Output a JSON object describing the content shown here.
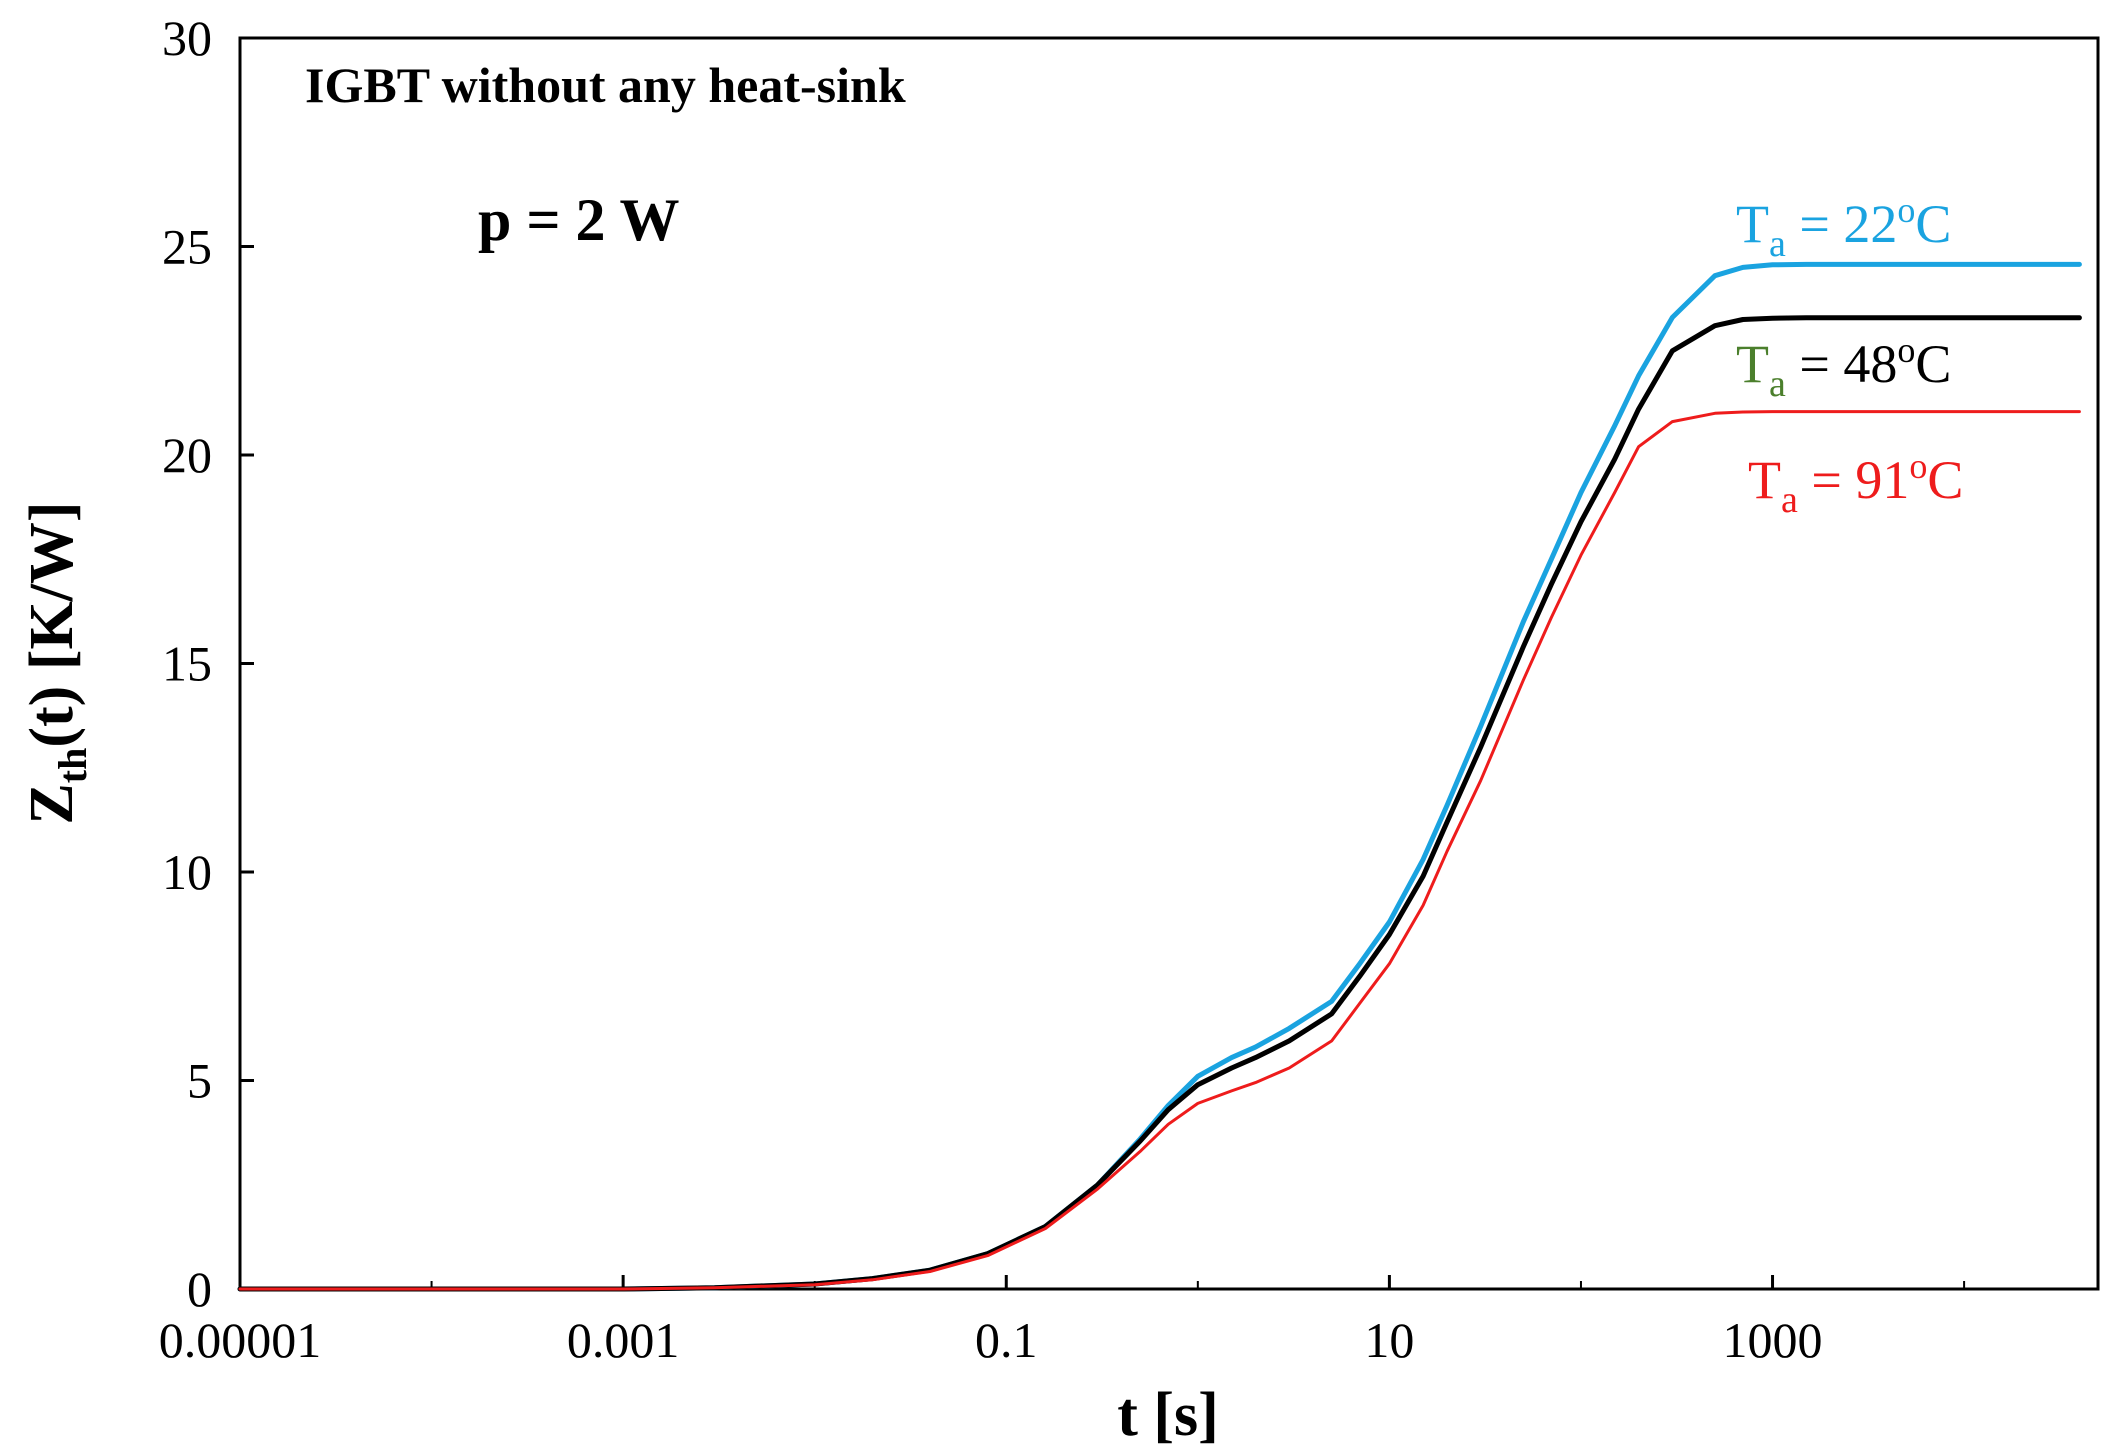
{
  "chart_data": {
    "type": "line",
    "title": "",
    "annotations": [
      {
        "name": "plot-subtitle",
        "text": "IGBT without any heat-sink"
      },
      {
        "name": "power-annotation",
        "text": "p = 2 W"
      }
    ],
    "xlabel": "t [s]",
    "ylabel": {
      "main": "Z",
      "sub": "th",
      "rest": "(t) [K/W]"
    },
    "x_scale": "log",
    "xlim": [
      1e-05,
      50000
    ],
    "ylim": [
      0,
      30
    ],
    "x_ticks": [
      1e-05,
      0.001,
      0.1,
      10,
      1000
    ],
    "x_tick_labels": [
      "0.00001",
      "0.001",
      "0.1",
      "10",
      "1000"
    ],
    "y_ticks": [
      0,
      5,
      10,
      15,
      20,
      25,
      30
    ],
    "y_tick_labels": [
      "0",
      "5",
      "10",
      "15",
      "20",
      "25",
      "30"
    ],
    "grid": false,
    "x": [
      1e-05,
      0.0001,
      0.001,
      0.003,
      0.01,
      0.02,
      0.04,
      0.08,
      0.16,
      0.3,
      0.5,
      0.7,
      1,
      1.5,
      2,
      3,
      5,
      7,
      10,
      15,
      20,
      30,
      50,
      70,
      100,
      150,
      200,
      300,
      500,
      700,
      1000,
      1500,
      3000,
      10000,
      40000
    ],
    "series": [
      {
        "name": "Ta = 22°C",
        "label_parts": {
          "main": "T",
          "sub": "a",
          "eq": " = 22",
          "sup": "o",
          "unit": "C"
        },
        "label_colors": {
          "main": "#1aa3e0",
          "rest": "#1aa3e0"
        },
        "color": "#1aa3e0",
        "width": 5,
        "values": [
          0,
          0,
          0,
          0.03,
          0.12,
          0.25,
          0.45,
          0.85,
          1.5,
          2.5,
          3.6,
          4.4,
          5.1,
          5.55,
          5.8,
          6.25,
          6.9,
          7.8,
          8.8,
          10.3,
          11.6,
          13.5,
          16.0,
          17.5,
          19.1,
          20.7,
          21.9,
          23.3,
          24.3,
          24.5,
          24.56,
          24.57,
          24.57,
          24.57,
          24.57
        ]
      },
      {
        "name": "Ta = 48°C",
        "label_parts": {
          "main": "T",
          "sub": "a",
          "eq": " = 48",
          "sup": "o",
          "unit": "C"
        },
        "label_colors": {
          "main": "#4b7f2c",
          "rest": "#000000"
        },
        "color": "#000000",
        "width": 5,
        "values": [
          0,
          0,
          0,
          0.03,
          0.12,
          0.25,
          0.45,
          0.85,
          1.5,
          2.5,
          3.55,
          4.3,
          4.9,
          5.3,
          5.55,
          5.95,
          6.6,
          7.5,
          8.5,
          9.9,
          11.2,
          13.0,
          15.4,
          16.9,
          18.4,
          19.9,
          21.1,
          22.5,
          23.1,
          23.25,
          23.28,
          23.29,
          23.29,
          23.29,
          23.29
        ]
      },
      {
        "name": "Ta = 91°C",
        "label_parts": {
          "main": "T",
          "sub": "a",
          "eq": " = 91",
          "sup": "o",
          "unit": "C"
        },
        "label_colors": {
          "main": "#ee1c1c",
          "rest": "#ee1c1c"
        },
        "color": "#ee1c1c",
        "width": 3,
        "values": [
          0,
          0,
          0,
          0.03,
          0.1,
          0.22,
          0.42,
          0.8,
          1.45,
          2.4,
          3.3,
          3.95,
          4.45,
          4.75,
          4.95,
          5.3,
          5.95,
          6.85,
          7.8,
          9.2,
          10.5,
          12.2,
          14.6,
          16.1,
          17.6,
          19.1,
          20.2,
          20.8,
          21.0,
          21.03,
          21.04,
          21.04,
          21.04,
          21.04,
          21.04
        ]
      }
    ]
  }
}
